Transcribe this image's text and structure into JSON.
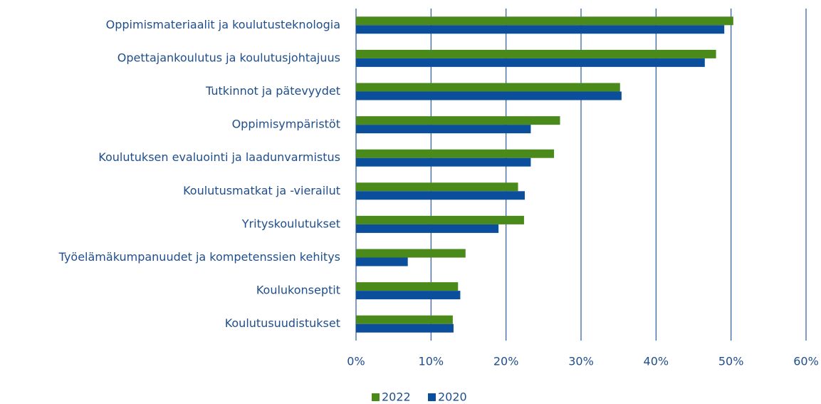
{
  "chart_data": {
    "type": "bar",
    "orientation": "horizontal",
    "categories": [
      "Oppimismateriaalit ja koulutusteknologia",
      "Opettajankoulutus ja koulutusjohtajuus",
      "Tutkinnot ja pätevyydet",
      "Oppimisympäristöt",
      "Koulutuksen evaluointi ja laadunvarmistus",
      "Koulutusmatkat ja -vierailut",
      "Yrityskoulutukset",
      "Työelämäkumpanuudet ja kompetenssien kehitys",
      "Koulukonseptit",
      "Koulutusuudistukset"
    ],
    "series": [
      {
        "name": "2022",
        "color": "#4a8a1a",
        "values": [
          50.3,
          48.0,
          35.2,
          27.2,
          26.4,
          21.6,
          22.4,
          14.6,
          13.6,
          12.9
        ]
      },
      {
        "name": "2020",
        "color": "#0b4f9c",
        "values": [
          49.1,
          46.5,
          35.4,
          23.3,
          23.3,
          22.5,
          19.0,
          6.9,
          13.9,
          13.0
        ]
      }
    ],
    "xlim": [
      0,
      60
    ],
    "xticks": [
      {
        "value": 0,
        "label": "0%"
      },
      {
        "value": 10,
        "label": "10%"
      },
      {
        "value": 20,
        "label": "20%"
      },
      {
        "value": 30,
        "label": "30%"
      },
      {
        "value": 40,
        "label": "40%"
      },
      {
        "value": 50,
        "label": "50%"
      },
      {
        "value": 60,
        "label": "60%"
      }
    ],
    "grid": true,
    "legend": "bottom"
  }
}
